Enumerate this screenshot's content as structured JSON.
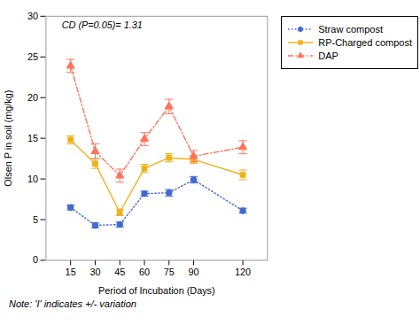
{
  "chart_data": {
    "type": "line",
    "x": [
      15,
      30,
      45,
      60,
      75,
      90,
      120
    ],
    "series": [
      {
        "name": "Straw compost",
        "values": [
          6.5,
          4.3,
          4.4,
          8.2,
          8.3,
          9.9,
          6.1
        ],
        "errors": [
          0.3,
          0.3,
          0.3,
          0.3,
          0.4,
          0.4,
          0.3
        ],
        "marker": "circle",
        "line_style": "dotted"
      },
      {
        "name": "RP-Charged compost",
        "values": [
          14.8,
          11.9,
          5.9,
          11.3,
          12.6,
          12.4,
          10.5
        ],
        "errors": [
          0.5,
          0.6,
          0.4,
          0.5,
          0.5,
          0.5,
          0.6
        ],
        "marker": "square",
        "line_style": "solid"
      },
      {
        "name": "DAP",
        "values": [
          23.9,
          13.4,
          10.4,
          14.9,
          18.9,
          12.8,
          13.9
        ],
        "errors": [
          0.8,
          0.9,
          0.8,
          0.8,
          0.9,
          0.7,
          0.8
        ],
        "marker": "triangle",
        "line_style": "dashdot"
      }
    ],
    "xlabel": "Period of Incubation (Days)",
    "ylabel": "Olsen P in soil (mg/kg)",
    "xlim": [
      0,
      135
    ],
    "xticks": [
      15,
      30,
      45,
      60,
      75,
      90,
      120
    ],
    "ylim": [
      0,
      30
    ],
    "yticks": [
      0,
      5,
      10,
      15,
      20,
      25,
      30
    ],
    "annotation": "CD (P=0.05)= 1.31",
    "note": "Note: 'I' indicates +/- variation",
    "legend": "right",
    "grid": false
  }
}
